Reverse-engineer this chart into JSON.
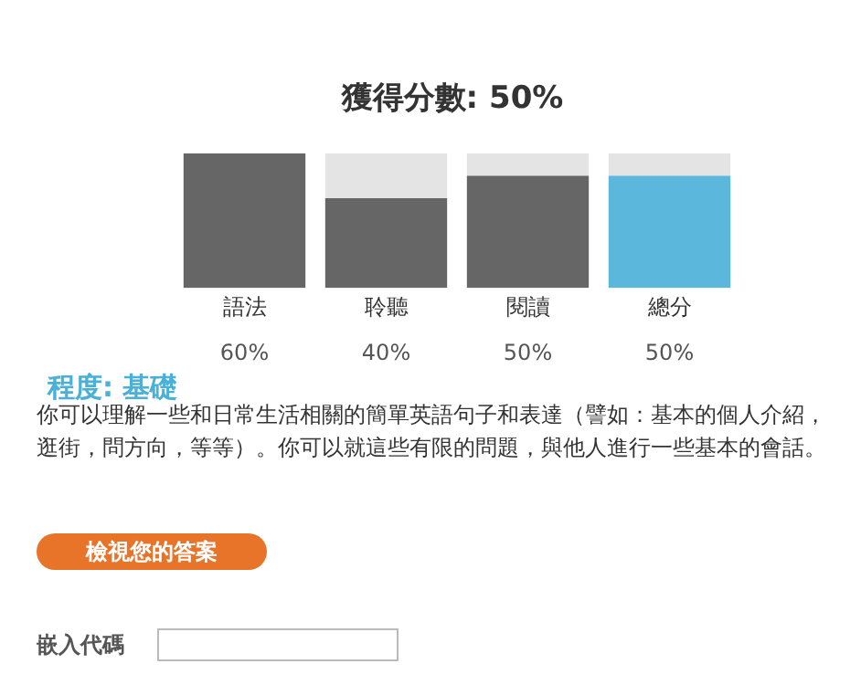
{
  "chart_data": {
    "type": "bar",
    "title": "獲得分數: 50%",
    "categories": [
      "語法",
      "聆聽",
      "閱讀",
      "總分"
    ],
    "values": [
      60,
      40,
      50,
      50
    ],
    "colors": [
      "#666666",
      "#666666",
      "#666666",
      "#5bb8dc"
    ],
    "value_labels": [
      "60%",
      "40%",
      "50%",
      "50%"
    ],
    "grid": false,
    "legend": false,
    "tick_labels": "x",
    "annotations": [
      "程度: 基礎",
      "你可以理解一些和日常生活相關的簡單英語句子和表達（譬如：基本的個人介紹，逛街，問方向，等等）。你可以就這些有限的問題，與他人進行一些基本的會話。",
      "檢視您的答案",
      "嵌入代碼"
    ]
  }
}
